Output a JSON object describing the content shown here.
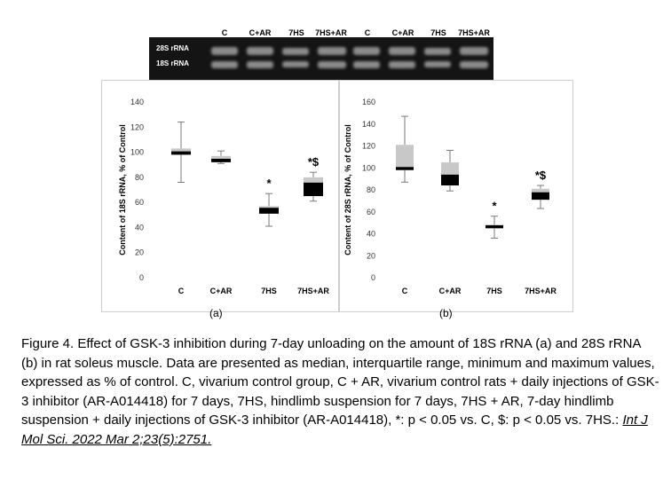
{
  "gel": {
    "lanes": [
      "C",
      "C+AR",
      "7HS",
      "7HS+AR",
      "C",
      "C+AR",
      "7HS",
      "7HS+AR"
    ],
    "bands": [
      "28S rRNA",
      "18S rRNA"
    ]
  },
  "chart_data": [
    {
      "type": "box",
      "panel_label": "(a)",
      "ylabel": "Content of 18S rRNA, % of Control",
      "ylim": [
        0,
        140
      ],
      "yticks": [
        0,
        20,
        40,
        60,
        80,
        100,
        120,
        140
      ],
      "categories": [
        "C",
        "C+AR",
        "7HS",
        "7HS+AR"
      ],
      "boxes": [
        {
          "min": 76,
          "q1": 98,
          "median": 100,
          "q3": 103,
          "max": 124,
          "annotation": ""
        },
        {
          "min": 91,
          "q1": 92,
          "median": 94,
          "q3": 97,
          "max": 101,
          "annotation": ""
        },
        {
          "min": 41,
          "q1": 51,
          "median": 55,
          "q3": 57,
          "max": 67,
          "annotation": "*"
        },
        {
          "min": 61,
          "q1": 65,
          "median": 75,
          "q3": 80,
          "max": 84,
          "annotation": "*$"
        }
      ],
      "box_colors": {
        "upper": "#c8c8c8",
        "lower": "#000000"
      }
    },
    {
      "type": "box",
      "panel_label": "(b)",
      "ylabel": "Content of 28S rRNA, % of Control",
      "ylim": [
        0,
        160
      ],
      "yticks": [
        0,
        20,
        40,
        60,
        80,
        100,
        120,
        140,
        160
      ],
      "categories": [
        "C",
        "C+AR",
        "7HS",
        "7HS+AR"
      ],
      "boxes": [
        {
          "min": 87,
          "q1": 98,
          "median": 100,
          "q3": 121,
          "max": 147,
          "annotation": ""
        },
        {
          "min": 79,
          "q1": 84,
          "median": 93,
          "q3": 105,
          "max": 116,
          "annotation": ""
        },
        {
          "min": 36,
          "q1": 45,
          "median": 47,
          "q3": 48,
          "max": 56,
          "annotation": "*"
        },
        {
          "min": 63,
          "q1": 71,
          "median": 77,
          "q3": 81,
          "max": 84,
          "annotation": "*$"
        }
      ],
      "box_colors": {
        "upper": "#c8c8c8",
        "lower": "#000000"
      }
    }
  ],
  "caption": {
    "text": "Figure 4. Effect of GSK-3 inhibition during 7-day unloading on the amount of 18S rRNA (a) and 28S rRNA (b) in rat soleus muscle. Data are presented as median, interquartile range, minimum and maximum values, expressed as % of control. C, vivarium control group, C + AR, vivarium control rats + daily injections of GSK-3 inhibitor (AR-A014418) for 7 days, 7HS, hindlimb suspension for 7 days, 7HS + AR, 7-day hindlimb suspension + daily injections of GSK-3 inhibitor (AR-A014418), *: p < 0.05 vs. C, $: p < 0.05 vs. 7HS.: ",
    "source": "Int J Mol Sci. 2022 Mar 2;23(5):2751."
  }
}
